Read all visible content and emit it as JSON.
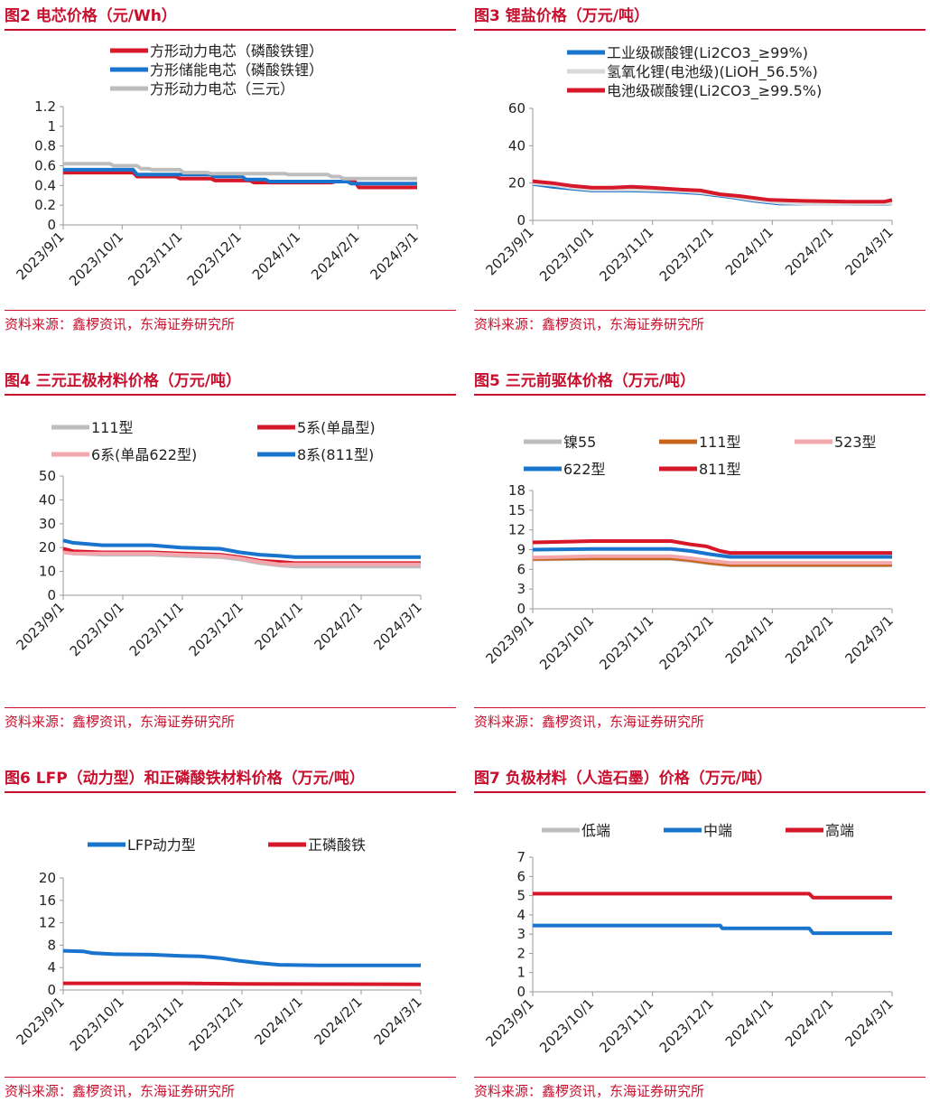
{
  "source": "资料来源：鑫椤资讯，东海证券研究所",
  "x_ticks": [
    "2023/9/1",
    "2023/10/1",
    "2023/11/1",
    "2023/12/1",
    "2024/1/1",
    "2024/2/1",
    "2024/3/1"
  ],
  "panels": [
    {
      "title": "图2 电芯价格（元/Wh）",
      "chart_data": {
        "type": "line",
        "title": "电芯价格（元/Wh）",
        "ylim": [
          0,
          1.2
        ],
        "yticks": [
          0,
          0.2,
          0.4,
          0.6,
          0.8,
          1,
          1.2
        ],
        "legend": "top",
        "series": [
          {
            "name": "方形动力电芯（磷酸铁锂）",
            "color": "#d7182a",
            "points": [
              [
                0,
                0.53
              ],
              [
                36,
                0.53
              ],
              [
                38,
                0.49
              ],
              [
                40,
                0.49
              ],
              [
                58,
                0.49
              ],
              [
                60,
                0.47
              ],
              [
                76,
                0.47
              ],
              [
                78,
                0.45
              ],
              [
                96,
                0.45
              ],
              [
                98,
                0.43
              ],
              [
                138,
                0.43
              ],
              [
                140,
                0.44
              ],
              [
                150,
                0.44
              ],
              [
                152,
                0.38
              ],
              [
                182,
                0.38
              ]
            ]
          },
          {
            "name": "方形储能电芯（磷酸铁锂）",
            "color": "#1874cd",
            "points": [
              [
                0,
                0.56
              ],
              [
                36,
                0.56
              ],
              [
                38,
                0.51
              ],
              [
                76,
                0.51
              ],
              [
                78,
                0.49
              ],
              [
                92,
                0.49
              ],
              [
                94,
                0.46
              ],
              [
                104,
                0.46
              ],
              [
                106,
                0.44
              ],
              [
                146,
                0.44
              ],
              [
                148,
                0.42
              ],
              [
                182,
                0.42
              ]
            ]
          },
          {
            "name": "方形动力电芯（三元）",
            "color": "#bdbdbd",
            "points": [
              [
                0,
                0.62
              ],
              [
                24,
                0.62
              ],
              [
                26,
                0.6
              ],
              [
                38,
                0.6
              ],
              [
                40,
                0.57
              ],
              [
                44,
                0.57
              ],
              [
                46,
                0.56
              ],
              [
                60,
                0.56
              ],
              [
                62,
                0.53
              ],
              [
                74,
                0.53
              ],
              [
                76,
                0.52
              ],
              [
                114,
                0.52
              ],
              [
                116,
                0.51
              ],
              [
                136,
                0.51
              ],
              [
                138,
                0.49
              ],
              [
                142,
                0.49
              ],
              [
                144,
                0.47
              ],
              [
                182,
                0.47
              ]
            ]
          }
        ]
      }
    },
    {
      "title": "图3 锂盐价格（万元/吨）",
      "chart_data": {
        "type": "line",
        "title": "锂盐价格（万元/吨）",
        "ylim": [
          0,
          60
        ],
        "yticks": [
          0,
          20,
          40,
          60
        ],
        "legend": "top",
        "series": [
          {
            "name": "工业级碳酸锂(Li2CO3_≥99%)",
            "color": "#1874cd",
            "points": [
              [
                0,
                19.5
              ],
              [
                10,
                18
              ],
              [
                20,
                17
              ],
              [
                30,
                16
              ],
              [
                50,
                16
              ],
              [
                70,
                15.5
              ],
              [
                85,
                14.5
              ],
              [
                100,
                12.5
              ],
              [
                112,
                10.5
              ],
              [
                125,
                9
              ],
              [
                140,
                9
              ],
              [
                180,
                8.8
              ],
              [
                182,
                9
              ]
            ]
          },
          {
            "name": "氢氧化锂(电池级)(LiOH_56.5%)",
            "color": "#d9d9d9",
            "points": [
              [
                0,
                20
              ],
              [
                10,
                19
              ],
              [
                20,
                17.5
              ],
              [
                30,
                16.5
              ],
              [
                50,
                16.5
              ],
              [
                70,
                16
              ],
              [
                85,
                15
              ],
              [
                100,
                13
              ],
              [
                112,
                11
              ],
              [
                125,
                9.5
              ],
              [
                140,
                9
              ],
              [
                180,
                9
              ],
              [
                182,
                9
              ]
            ]
          },
          {
            "name": "电池级碳酸锂(Li2CO3_≥99.5%)",
            "color": "#d7182a",
            "points": [
              [
                0,
                21
              ],
              [
                10,
                20
              ],
              [
                20,
                18.5
              ],
              [
                30,
                17.5
              ],
              [
                40,
                17.5
              ],
              [
                50,
                18
              ],
              [
                60,
                17.5
              ],
              [
                75,
                16.5
              ],
              [
                85,
                16
              ],
              [
                95,
                14
              ],
              [
                105,
                13
              ],
              [
                120,
                11
              ],
              [
                135,
                10.5
              ],
              [
                160,
                10
              ],
              [
                178,
                10
              ],
              [
                182,
                11
              ]
            ]
          }
        ]
      }
    },
    {
      "title": "图4 三元正极材料价格（万元/吨）",
      "chart_data": {
        "type": "line",
        "title": "三元正极材料价格（万元/吨）",
        "ylim": [
          0,
          50
        ],
        "yticks": [
          0,
          10,
          20,
          30,
          40,
          50
        ],
        "legend": "top",
        "series": [
          {
            "name": "111型",
            "color": "#bdbdbd",
            "points": [
              [
                0,
                18.5
              ],
              [
                5,
                17.5
              ],
              [
                20,
                17
              ],
              [
                45,
                17
              ],
              [
                60,
                16.5
              ],
              [
                80,
                16
              ],
              [
                90,
                15
              ],
              [
                100,
                13.5
              ],
              [
                110,
                12.5
              ],
              [
                118,
                12
              ],
              [
                182,
                12
              ]
            ]
          },
          {
            "name": "5系(单晶型)",
            "color": "#d7182a",
            "points": [
              [
                0,
                19.5
              ],
              [
                5,
                18.5
              ],
              [
                20,
                18
              ],
              [
                45,
                18
              ],
              [
                60,
                17.5
              ],
              [
                80,
                17
              ],
              [
                90,
                16
              ],
              [
                100,
                14.5
              ],
              [
                110,
                14
              ],
              [
                118,
                13.5
              ],
              [
                182,
                13.5
              ]
            ]
          },
          {
            "name": "6系(单晶622型)",
            "color": "#f4a6ad",
            "points": [
              [
                0,
                18
              ],
              [
                5,
                17.5
              ],
              [
                20,
                17.5
              ],
              [
                45,
                17.5
              ],
              [
                60,
                17
              ],
              [
                80,
                16.5
              ],
              [
                90,
                15.5
              ],
              [
                100,
                14
              ],
              [
                110,
                13
              ],
              [
                118,
                13
              ],
              [
                182,
                13
              ]
            ]
          },
          {
            "name": "8系(811型)",
            "color": "#1874cd",
            "points": [
              [
                0,
                23
              ],
              [
                5,
                22
              ],
              [
                20,
                21
              ],
              [
                45,
                21
              ],
              [
                60,
                20
              ],
              [
                80,
                19.5
              ],
              [
                90,
                18
              ],
              [
                100,
                17
              ],
              [
                110,
                16.5
              ],
              [
                118,
                16
              ],
              [
                182,
                16
              ]
            ]
          }
        ]
      }
    },
    {
      "title": "图5 三元前驱体价格（万元/吨）",
      "chart_data": {
        "type": "line",
        "title": "三元前驱体价格（万元/吨）",
        "ylim": [
          0,
          18
        ],
        "yticks": [
          0,
          3,
          6,
          9,
          12,
          15,
          18
        ],
        "legend": "top",
        "series": [
          {
            "name": "镍55",
            "color": "#bdbdbd",
            "points": [
              [
                0,
                7.5
              ],
              [
                30,
                7.6
              ],
              [
                70,
                7.6
              ],
              [
                80,
                7.3
              ],
              [
                90,
                6.9
              ],
              [
                100,
                6.6
              ],
              [
                182,
                6.6
              ]
            ]
          },
          {
            "name": "111型",
            "color": "#c8651b",
            "points": [
              [
                0,
                7.6
              ],
              [
                30,
                7.7
              ],
              [
                70,
                7.7
              ],
              [
                80,
                7.4
              ],
              [
                90,
                7
              ],
              [
                100,
                6.7
              ],
              [
                182,
                6.7
              ]
            ]
          },
          {
            "name": "523型",
            "color": "#f4a6ad",
            "points": [
              [
                0,
                7.8
              ],
              [
                30,
                8
              ],
              [
                70,
                8
              ],
              [
                80,
                7.7
              ],
              [
                90,
                7.3
              ],
              [
                100,
                7
              ],
              [
                182,
                7
              ]
            ]
          },
          {
            "name": "622型",
            "color": "#1874cd",
            "points": [
              [
                0,
                9
              ],
              [
                30,
                9.1
              ],
              [
                70,
                9.1
              ],
              [
                80,
                8.8
              ],
              [
                90,
                8.3
              ],
              [
                100,
                7.9
              ],
              [
                182,
                7.9
              ]
            ]
          },
          {
            "name": "811型",
            "color": "#d7182a",
            "points": [
              [
                0,
                10.1
              ],
              [
                30,
                10.3
              ],
              [
                70,
                10.3
              ],
              [
                80,
                9.8
              ],
              [
                88,
                9.5
              ],
              [
                95,
                8.8
              ],
              [
                100,
                8.5
              ],
              [
                182,
                8.5
              ]
            ]
          }
        ]
      }
    },
    {
      "title": "图6 LFP（动力型）和正磷酸铁材料价格（万元/吨）",
      "chart_data": {
        "type": "line",
        "title": "LFP（动力型）和正磷酸铁材料价格（万元/吨）",
        "ylim": [
          0,
          20
        ],
        "yticks": [
          0,
          4,
          8,
          12,
          16,
          20
        ],
        "legend": "top",
        "series": [
          {
            "name": "LFP动力型",
            "color": "#1874cd",
            "points": [
              [
                0,
                7
              ],
              [
                10,
                6.9
              ],
              [
                15,
                6.6
              ],
              [
                25,
                6.4
              ],
              [
                45,
                6.3
              ],
              [
                60,
                6.1
              ],
              [
                70,
                6
              ],
              [
                80,
                5.7
              ],
              [
                90,
                5.2
              ],
              [
                100,
                4.8
              ],
              [
                110,
                4.5
              ],
              [
                130,
                4.4
              ],
              [
                182,
                4.4
              ]
            ]
          },
          {
            "name": "正磷酸铁",
            "color": "#d7182a",
            "points": [
              [
                0,
                1.2
              ],
              [
                60,
                1.2
              ],
              [
                90,
                1.1
              ],
              [
                182,
                1.0
              ]
            ]
          }
        ]
      }
    },
    {
      "title": "图7 负极材料（人造石墨）价格（万元/吨）",
      "chart_data": {
        "type": "line",
        "title": "负极材料（人造石墨）价格（万元/吨）",
        "ylim": [
          0,
          7
        ],
        "yticks": [
          0,
          1,
          2,
          3,
          4,
          5,
          6,
          7
        ],
        "legend": "top",
        "series": [
          {
            "name": "低端",
            "color": "#bdbdbd",
            "points": []
          },
          {
            "name": "中端",
            "color": "#1874cd",
            "points": [
              [
                0,
                3.45
              ],
              [
                95,
                3.45
              ],
              [
                96,
                3.3
              ],
              [
                140,
                3.3
              ],
              [
                142,
                3.05
              ],
              [
                182,
                3.05
              ]
            ]
          },
          {
            "name": "高端",
            "color": "#d7182a",
            "points": [
              [
                0,
                5.1
              ],
              [
                140,
                5.1
              ],
              [
                142,
                4.9
              ],
              [
                182,
                4.9
              ]
            ]
          }
        ]
      }
    }
  ]
}
